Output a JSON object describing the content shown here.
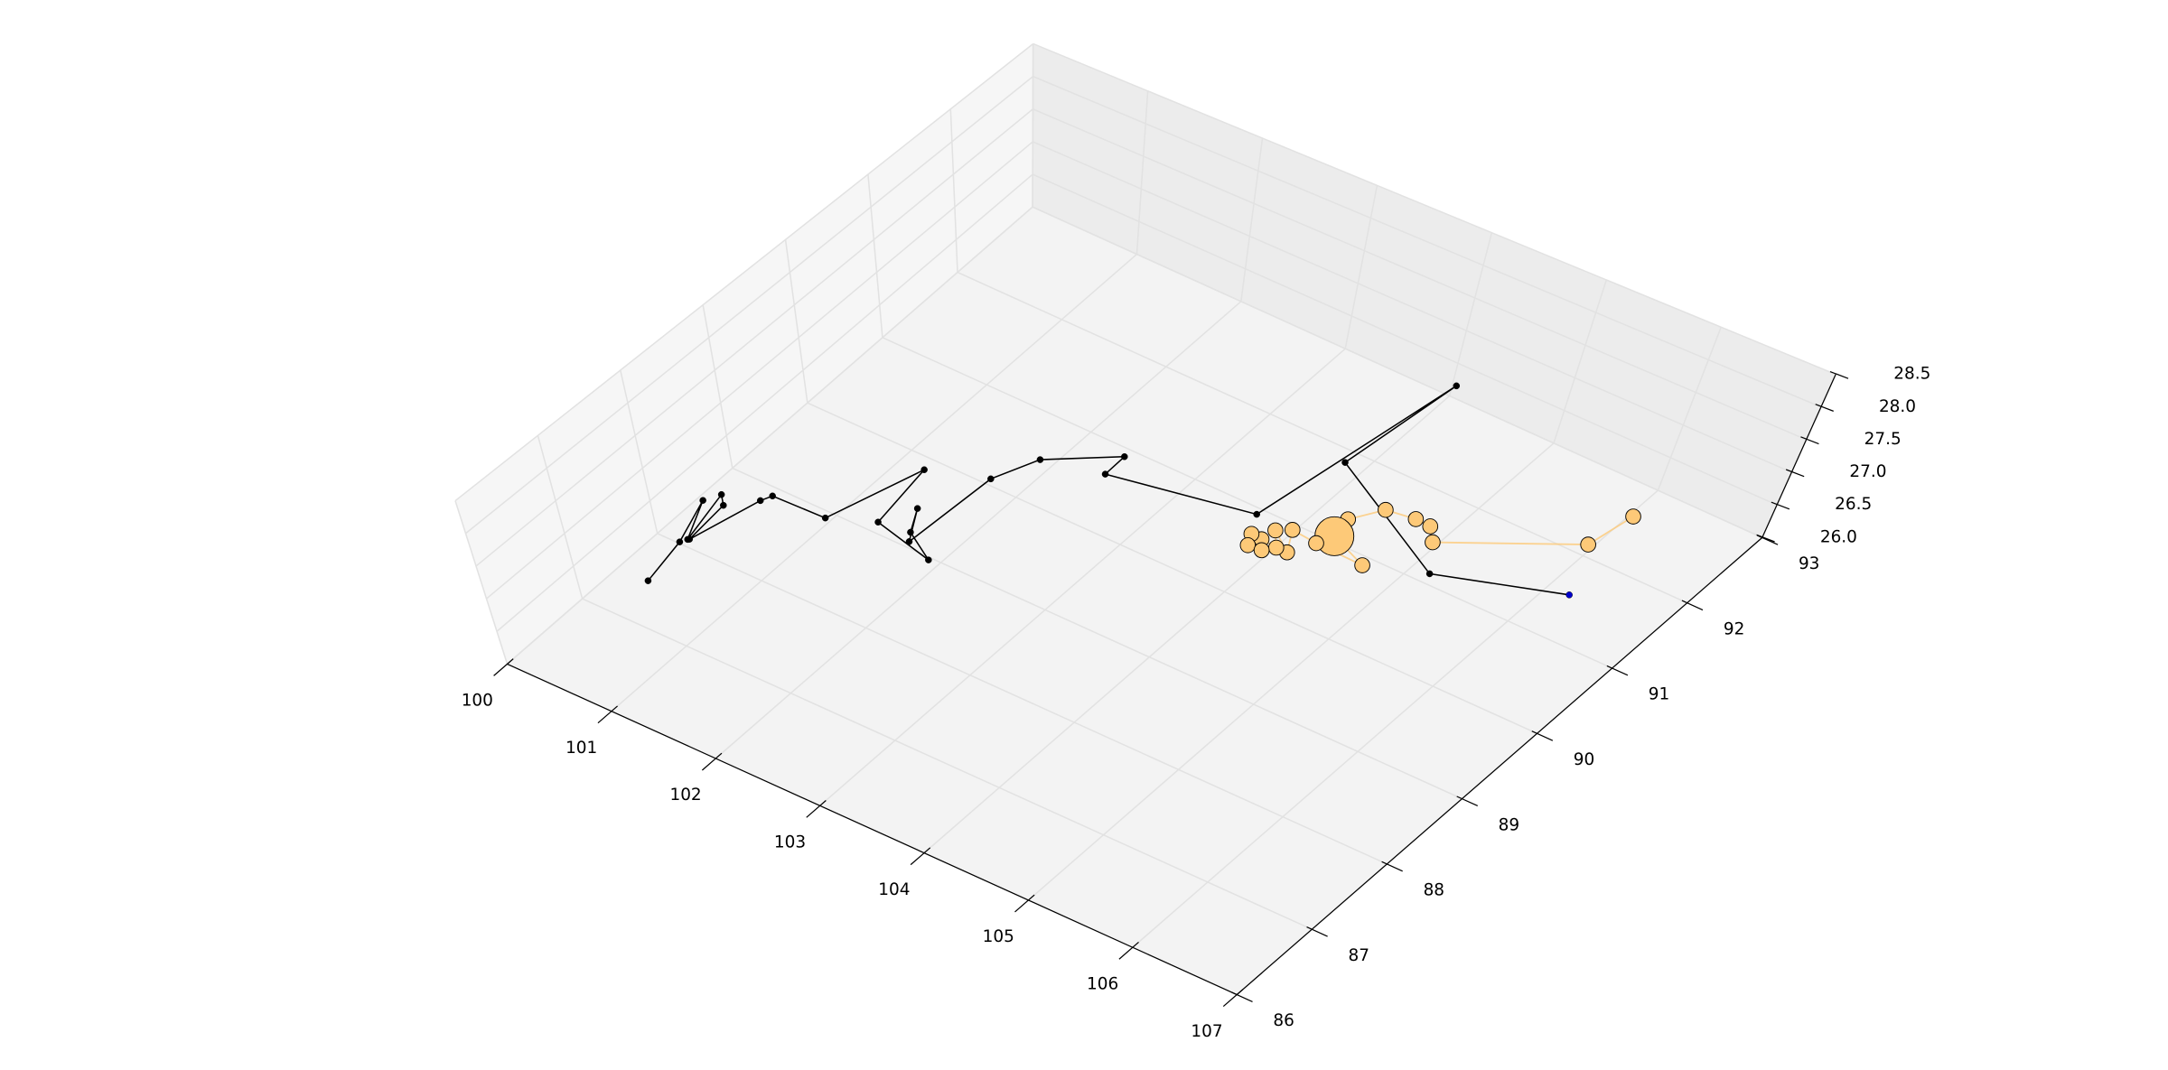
{
  "chart_data": {
    "type": "line3d",
    "xlim": [
      100,
      107
    ],
    "ylim": [
      86,
      93
    ],
    "zlim": [
      26,
      28.5
    ],
    "xticks": [
      100,
      101,
      102,
      103,
      104,
      105,
      106,
      107
    ],
    "yticks": [
      86,
      87,
      88,
      89,
      90,
      91,
      92,
      93
    ],
    "zticks": [
      {
        "value": 26,
        "label": "26.0"
      },
      26.5,
      {
        "value": 27,
        "label": "27.0"
      },
      27.5,
      {
        "value": 28,
        "label": "28.0"
      },
      28.5
    ],
    "grid": true,
    "series": [
      {
        "color": "#000000",
        "last_point_color": "#0000cc",
        "x": [
          100.85,
          100.76,
          100.6,
          100.79,
          100.67,
          100.76,
          100.8,
          100.95,
          100.99,
          101.47,
          101.72,
          101.82,
          102.4,
          102.09,
          101.96,
          102.15,
          102.19,
          102.35,
          102.84,
          102.85,
          104.06,
          104.34,
          104.22,
          105.54,
          106.54
        ],
        "y": [
          86.89,
          87.42,
          87.94,
          87.48,
          88.08,
          87.98,
          87.49,
          88.19,
          88.29,
          88.3,
          89.22,
          88.49,
          88.33,
          88.53,
          88.8,
          88.43,
          89.42,
          89.83,
          90.23,
          89.97,
          90.23,
          92.4,
          91.14,
          90.39,
          90.79
        ],
        "z": [
          27,
          27,
          27,
          27,
          27,
          27,
          27,
          27,
          27,
          27,
          27,
          27,
          27,
          27,
          27,
          27,
          27,
          27,
          27,
          27,
          27,
          27,
          27,
          27,
          27
        ]
      },
      {
        "color": "#fdc978",
        "x": [
          106.36,
          106.29,
          105.33,
          105.2,
          105.06,
          104.81,
          104.65,
          104.69,
          105.07,
          104.63,
          104.39,
          104.52,
          104.29,
          104.42,
          104.27,
          104.17,
          104.23,
          104.35
        ],
        "y": [
          91.86,
          91.38,
          90.72,
          90.87,
          90.88,
          90.84,
          90.58,
          90.35,
          90.18,
          90.2,
          90.23,
          89.98,
          90.15,
          89.98,
          90.0,
          90.01,
          89.88,
          89.89
        ],
        "z": [
          27,
          27,
          27,
          27,
          27,
          27,
          27,
          27,
          27,
          27,
          27,
          27,
          27,
          27,
          27,
          27,
          27,
          27
        ],
        "sizes": [
          60,
          60,
          60,
          60,
          60,
          60,
          60,
          400,
          60,
          60,
          60,
          60,
          60,
          60,
          60,
          60,
          60,
          60
        ]
      }
    ]
  }
}
